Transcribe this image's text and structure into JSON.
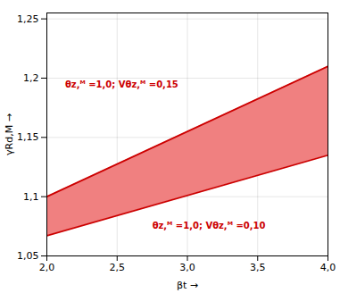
{
  "chart_data": {
    "type": "area",
    "x": [
      2.0,
      4.0
    ],
    "series": [
      {
        "values": [
          1.1,
          1.21
        ],
        "color": "#cc0000"
      },
      {
        "values": [
          1.067,
          1.135
        ],
        "color": "#cc0000"
      }
    ],
    "color": "#f08080",
    "xlabel": "βt",
    "ylabel": "γRd,M",
    "xlim": [
      2.0,
      4.0
    ],
    "ylim": [
      1.05,
      1.255
    ],
    "xticks": [
      {
        "value": 2.0,
        "label": "2,0"
      },
      {
        "value": 2.5,
        "label": "2,5"
      },
      {
        "value": 3.0,
        "label": "3,0"
      },
      {
        "value": 3.5,
        "label": "3,5"
      },
      {
        "value": 4.0,
        "label": "4,0"
      }
    ],
    "yticks": [
      {
        "value": 1.05,
        "label": "1,05"
      },
      {
        "value": 1.1,
        "label": "1,1"
      },
      {
        "value": 1.15,
        "label": "1,15"
      },
      {
        "value": 1.2,
        "label": "1,2"
      },
      {
        "value": 1.25,
        "label": "1,25"
      }
    ],
    "annotations": [
      {
        "text": "θᴢ,ᴹ =1,0; Vθᴢ,ᴹ =0,15",
        "x": 2.13,
        "y": 1.192
      },
      {
        "text": "θᴢ,ᴹ =1,0; Vθᴢ,ᴹ =0,10",
        "x": 2.75,
        "y": 1.073
      }
    ],
    "grid": true
  }
}
